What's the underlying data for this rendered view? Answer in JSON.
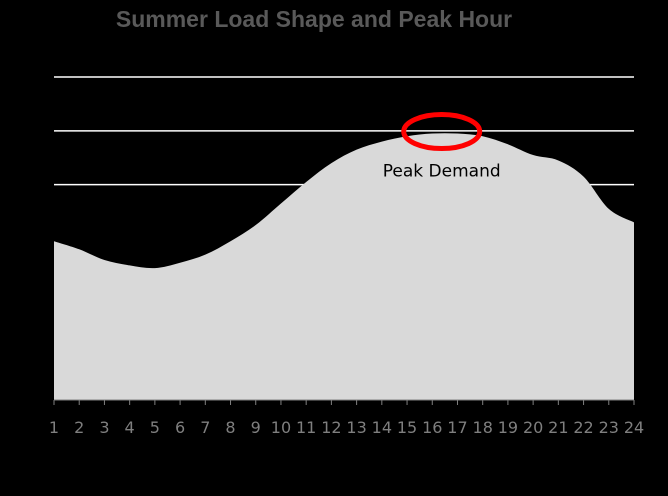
{
  "chart_data": {
    "type": "area",
    "title": "Summer Load Shape and Peak Hour",
    "xlabel": "",
    "ylabel": "",
    "x": [
      1,
      2,
      3,
      4,
      5,
      6,
      7,
      8,
      9,
      10,
      11,
      12,
      13,
      14,
      15,
      16,
      17,
      18,
      19,
      20,
      21,
      22,
      23,
      24
    ],
    "values": [
      0.59,
      0.56,
      0.52,
      0.5,
      0.49,
      0.51,
      0.54,
      0.59,
      0.65,
      0.73,
      0.81,
      0.88,
      0.93,
      0.96,
      0.98,
      0.99,
      0.99,
      0.98,
      0.95,
      0.91,
      0.89,
      0.83,
      0.71,
      0.66
    ],
    "ylim": [
      0,
      1.2
    ],
    "gridlines": [
      0.8,
      1.0,
      1.2
    ],
    "fill_color": "#d9d9d9",
    "grid_color": "#ffffff",
    "background": "#000000",
    "annotation": {
      "text": "Peak Demand",
      "highlight_x": [
        15.75,
        17.0
      ],
      "circle_color": "#ff0000"
    }
  }
}
